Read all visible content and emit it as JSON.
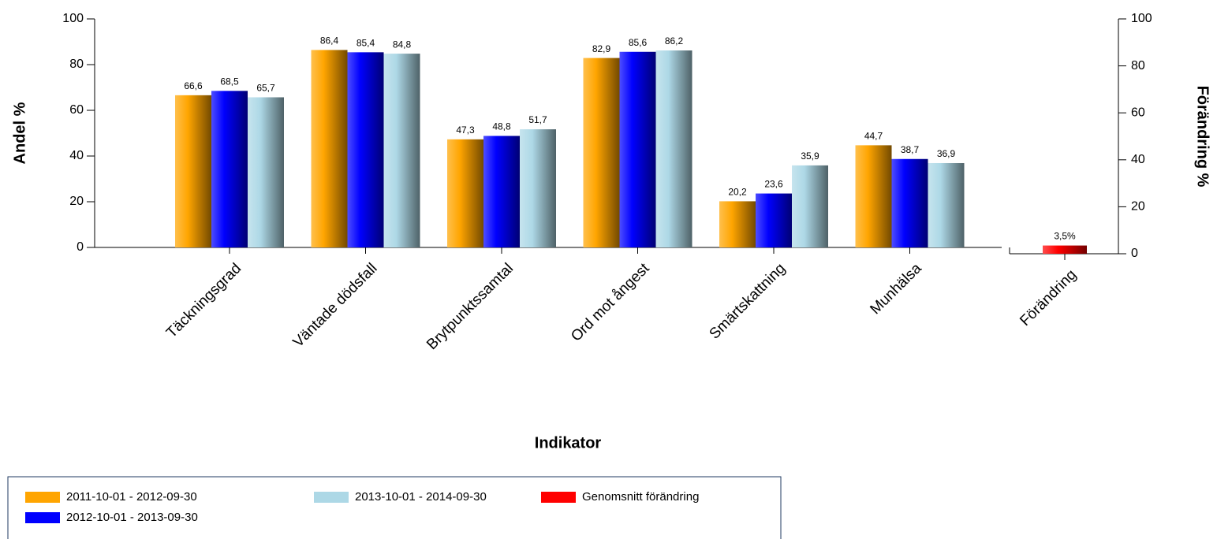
{
  "chart_data": {
    "type": "bar",
    "xlabel": "Indikator",
    "ylabel": "Andel %",
    "y2label": "Förändring %",
    "categories": [
      "Täckningsgrad",
      "Väntade dödsfall",
      "Brytpunktssamtal",
      "Ord mot ångest",
      "Smärtskattning",
      "Munhälsa",
      "Förändring"
    ],
    "series": [
      {
        "name": "2011-10-01 - 2012-09-30",
        "color": "#ffa500",
        "values": [
          66.6,
          86.4,
          47.3,
          82.9,
          20.2,
          44.7,
          null
        ],
        "value_labels": [
          "66,6",
          "86,4",
          "47,3",
          "82,9",
          "20,2",
          "44,7",
          null
        ]
      },
      {
        "name": "2012-10-01 - 2013-09-30",
        "color": "#0000ff",
        "values": [
          68.5,
          85.4,
          48.8,
          85.6,
          23.6,
          38.7,
          null
        ],
        "value_labels": [
          "68,5",
          "85,4",
          "48,8",
          "85,6",
          "23,6",
          "38,7",
          null
        ]
      },
      {
        "name": "2013-10-01 - 2014-09-30",
        "color": "#add8e6",
        "values": [
          65.7,
          84.8,
          51.7,
          86.2,
          35.9,
          36.9,
          null
        ],
        "value_labels": [
          "65,7",
          "84,8",
          "51,7",
          "86,2",
          "35,9",
          "36,9",
          null
        ]
      },
      {
        "name": "Genomsnitt förändring",
        "color": "#ff0000",
        "axis": "y2",
        "values": [
          null,
          null,
          null,
          null,
          null,
          null,
          3.5
        ],
        "value_labels": [
          null,
          null,
          null,
          null,
          null,
          null,
          "3,5%"
        ]
      }
    ],
    "ylim": [
      0,
      100
    ],
    "yticks": [
      0,
      20,
      40,
      60,
      80,
      100
    ],
    "y2lim": [
      0,
      100
    ],
    "y2ticks": [
      0,
      20,
      40,
      60,
      80,
      100
    ],
    "grid": false,
    "legend": "bottom-left"
  }
}
